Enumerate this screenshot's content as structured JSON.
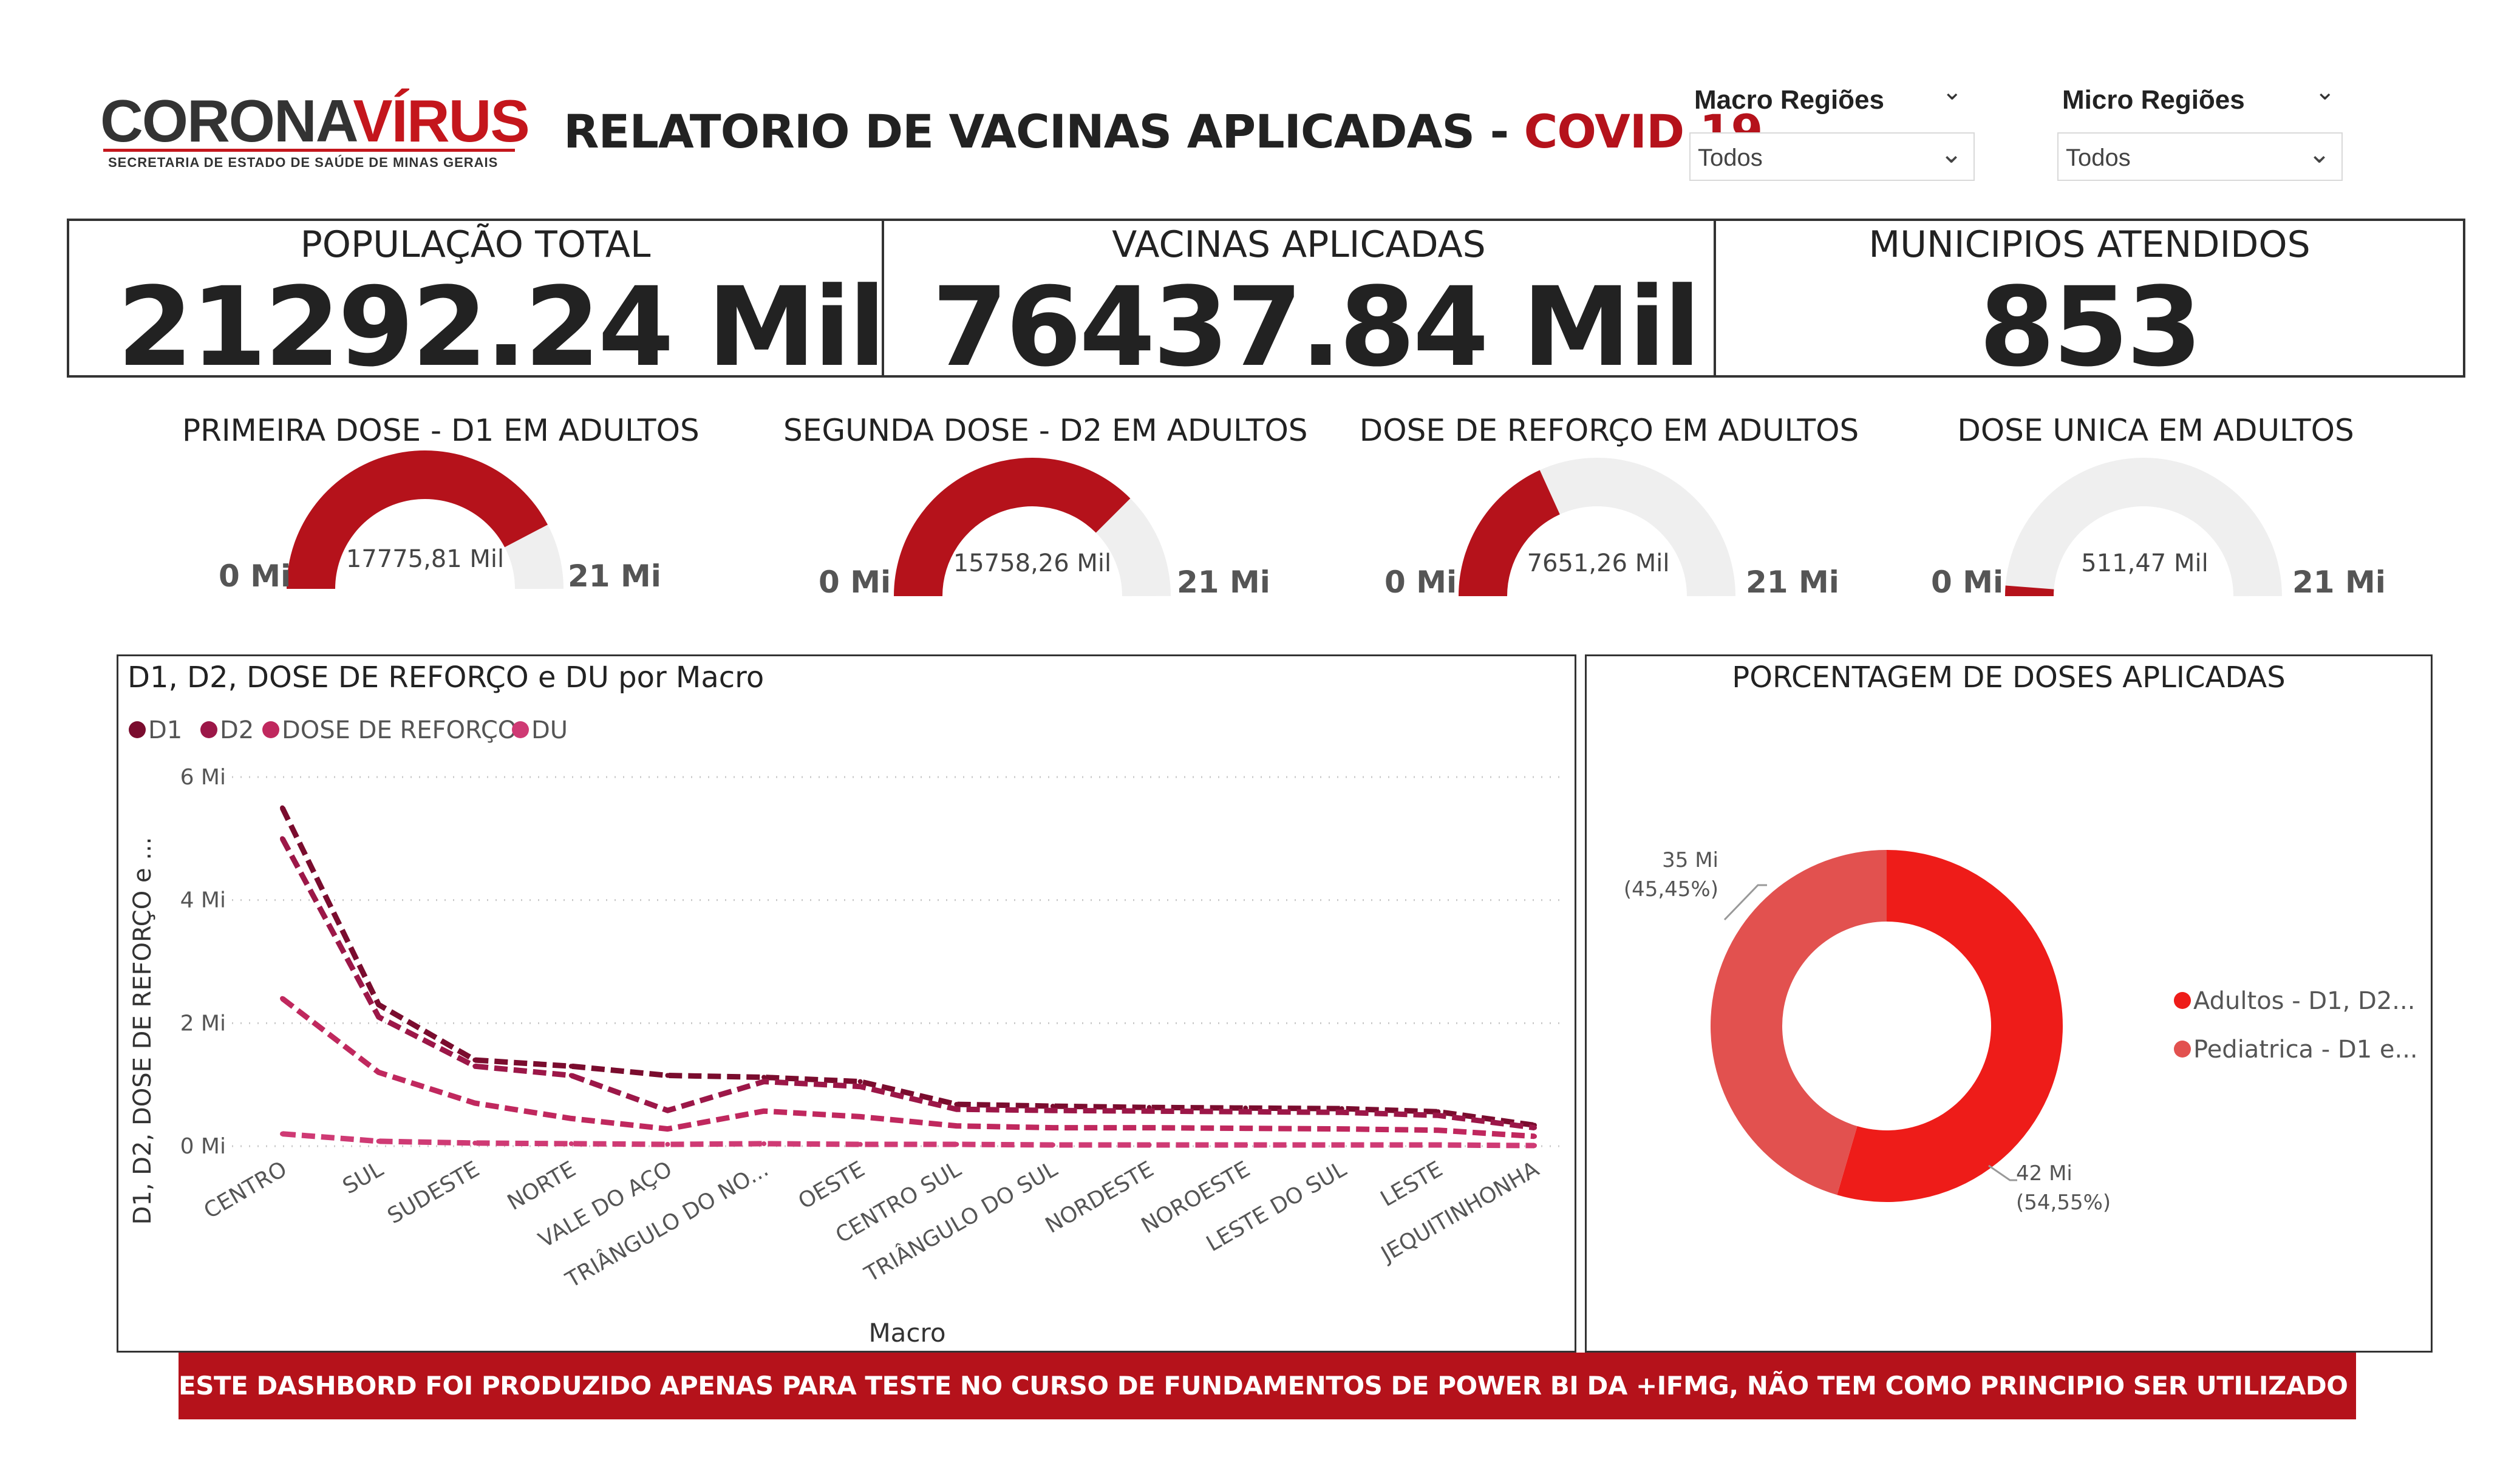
{
  "logo": {
    "brand_part1": "CORONA",
    "brand_part2": "VÍRUS",
    "subtitle": "SECRETARIA DE ESTADO DE SAÚDE DE MINAS GERAIS"
  },
  "header": {
    "title_main": "RELATORIO DE  VACINAS APLICADAS - ",
    "title_accent": "COVID 19"
  },
  "filters": {
    "macro": {
      "label": "Macro Regiões",
      "value": "Todos"
    },
    "micro": {
      "label": "Micro Regiões",
      "value": "Todos"
    }
  },
  "kpis": [
    {
      "title": "POPULAÇÃO TOTAL",
      "value": "21292.24 Mil"
    },
    {
      "title": "VACINAS APLICADAS",
      "value": "76437.84 Mil"
    },
    {
      "title": "MUNICIPIOS ATENDIDOS",
      "value": "853"
    }
  ],
  "gauges": [
    {
      "title": "PRIMEIRA DOSE - D1 EM ADULTOS",
      "value_label": "17775,81 Mil",
      "min_label": "0 Mi",
      "max_label": "21 Mi",
      "fraction": 0.8465
    },
    {
      "title": "SEGUNDA DOSE - D2 EM ADULTOS",
      "value_label": "15758,26 Mil",
      "min_label": "0 Mi",
      "max_label": "21 Mi",
      "fraction": 0.7504
    },
    {
      "title": "DOSE DE REFORÇO EM ADULTOS",
      "value_label": "7651,26 Mil",
      "min_label": "0 Mi",
      "max_label": "21 Mi",
      "fraction": 0.3643
    },
    {
      "title": "DOSE UNICA EM ADULTOS",
      "value_label": "511,47 Mil",
      "min_label": "0 Mi",
      "max_label": "21 Mi",
      "fraction": 0.0244
    }
  ],
  "line_chart": {
    "title": "D1, D2, DOSE DE REFORÇO e DU por Macro",
    "xlabel": "Macro",
    "ylabel": "D1, D2, DOSE DE REFORÇO e ...",
    "y_ticks": [
      "6 Mi",
      "4 Mi",
      "2 Mi",
      "0 Mi"
    ],
    "legend_colors": [
      "#7a0c2e",
      "#9c1748",
      "#c0285e",
      "#cf3a74"
    ]
  },
  "donut": {
    "title": "PORCENTAGEM DE DOSES APLICADAS",
    "legend_colors": [
      "#ee1c19",
      "#e2514f"
    ]
  },
  "chart_data": [
    {
      "type": "line",
      "title": "D1, D2, DOSE DE REFORÇO e DU por Macro",
      "xlabel": "Macro",
      "ylabel": "D1, D2, DOSE DE REFORÇO e ...",
      "ylim": [
        0,
        6
      ],
      "y_unit": "Mi",
      "grid": true,
      "legend": "top-left",
      "categories": [
        "CENTRO",
        "SUL",
        "SUDESTE",
        "NORTE",
        "VALE DO AÇO",
        "TRIÂNGULO DO NO...",
        "OESTE",
        "CENTRO SUL",
        "TRIÂNGULO DO SUL",
        "NORDESTE",
        "NOROESTE",
        "LESTE DO SUL",
        "LESTE",
        "JEQUITINHONHA"
      ],
      "series": [
        {
          "name": "D1",
          "color": "#7a0c2e",
          "values": [
            5.5,
            2.3,
            1.4,
            1.3,
            1.15,
            1.12,
            1.05,
            0.68,
            0.65,
            0.63,
            0.62,
            0.61,
            0.56,
            0.34
          ]
        },
        {
          "name": "D2",
          "color": "#9c1748",
          "values": [
            5.0,
            2.1,
            1.3,
            1.15,
            0.58,
            1.05,
            0.97,
            0.6,
            0.58,
            0.57,
            0.56,
            0.55,
            0.5,
            0.3
          ]
        },
        {
          "name": "DOSE DE REFORÇO",
          "color": "#c0285e",
          "values": [
            2.4,
            1.2,
            0.7,
            0.45,
            0.28,
            0.57,
            0.48,
            0.33,
            0.3,
            0.3,
            0.29,
            0.28,
            0.26,
            0.16
          ]
        },
        {
          "name": "DU",
          "color": "#cf3a74",
          "values": [
            0.2,
            0.08,
            0.05,
            0.04,
            0.03,
            0.04,
            0.03,
            0.03,
            0.02,
            0.02,
            0.02,
            0.02,
            0.02,
            0.01
          ]
        }
      ]
    },
    {
      "type": "pie",
      "title": "PORCENTAGEM DE DOSES APLICADAS",
      "legend": "right",
      "slices": [
        {
          "name": "Adultos - D1, D2...",
          "value": 42,
          "value_label": "42 Mi",
          "percent_label": "(54,55%)",
          "color": "#ee1c19"
        },
        {
          "name": "Pediatrica - D1 e...",
          "value": 35,
          "value_label": "35 Mi",
          "percent_label": "(45,45%)",
          "color": "#e2514f"
        }
      ]
    }
  ],
  "footer": {
    "notice": "ESTE DASHBORD FOI PRODUZIDO APENAS PARA TESTE NO CURSO DE FUNDAMENTOS DE POWER BI DA +IFMG, NÃO TEM COMO PRINCIPIO SER UTILIZADO EM UM CASO REAL"
  }
}
